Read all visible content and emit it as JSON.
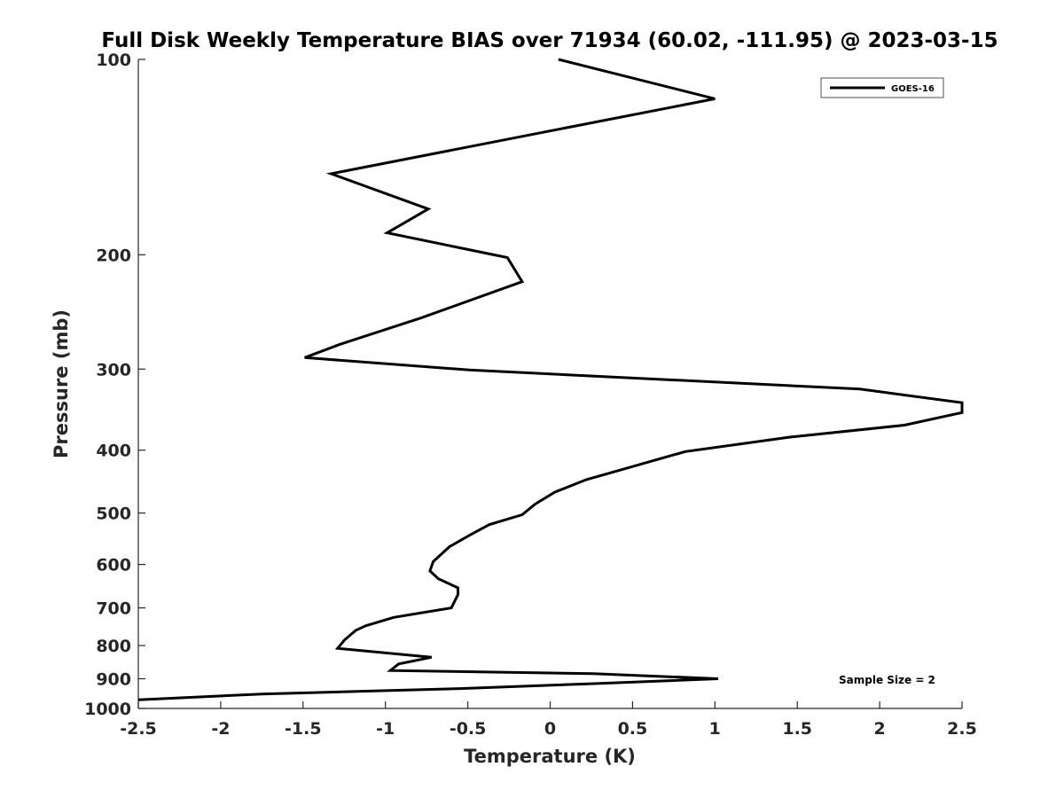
{
  "chart_data": {
    "type": "line",
    "title": "Full Disk Weekly Temperature BIAS over 71934 (60.02, -111.95) @ 2023-03-15",
    "xlabel": "Temperature (K)",
    "ylabel": "Pressure (mb)",
    "xlim": [
      -2.5,
      2.5
    ],
    "ylim": [
      100,
      1000
    ],
    "y_scale": "log",
    "y_reversed": true,
    "x_ticks": [
      "-2.5",
      "-2",
      "-1.5",
      "-1",
      "-0.5",
      "0",
      "0.5",
      "1",
      "1.5",
      "2",
      "2.5"
    ],
    "y_ticks": [
      "100",
      "200",
      "300",
      "400",
      "500",
      "600",
      "700",
      "800",
      "900",
      "1000"
    ],
    "grid": false,
    "legend_position": "top-right",
    "series": [
      {
        "name": "GOES-16",
        "color": "#000000",
        "points": [
          [
            0.05,
            100
          ],
          [
            1.0,
            115
          ],
          [
            -1.33,
            150
          ],
          [
            -0.74,
            170
          ],
          [
            -0.99,
            185
          ],
          [
            -0.26,
            202
          ],
          [
            -0.17,
            220
          ],
          [
            -0.78,
            250
          ],
          [
            -1.28,
            275
          ],
          [
            -1.49,
            288
          ],
          [
            -0.49,
            301
          ],
          [
            1.88,
            322
          ],
          [
            2.5,
            338
          ],
          [
            2.5,
            350
          ],
          [
            2.15,
            366
          ],
          [
            1.45,
            382
          ],
          [
            0.82,
            402
          ],
          [
            0.5,
            424
          ],
          [
            0.22,
            444
          ],
          [
            0.03,
            464
          ],
          [
            -0.09,
            484
          ],
          [
            -0.17,
            503
          ],
          [
            -0.37,
            521
          ],
          [
            -0.49,
            541
          ],
          [
            -0.61,
            563
          ],
          [
            -0.71,
            594
          ],
          [
            -0.73,
            614
          ],
          [
            -0.68,
            631
          ],
          [
            -0.56,
            652
          ],
          [
            -0.56,
            668
          ],
          [
            -0.6,
            700
          ],
          [
            -0.95,
            724
          ],
          [
            -1.12,
            746
          ],
          [
            -1.18,
            758
          ],
          [
            -1.25,
            785
          ],
          [
            -1.29,
            808
          ],
          [
            -0.72,
            834
          ],
          [
            -0.92,
            854
          ],
          [
            -0.97,
            874
          ],
          [
            0.26,
            884
          ],
          [
            1.02,
            900
          ],
          [
            0.25,
            916
          ],
          [
            -0.55,
            932
          ],
          [
            -1.75,
            950
          ],
          [
            -2.5,
            970
          ]
        ]
      }
    ],
    "annotations": [
      "Sample Size = 2"
    ]
  }
}
